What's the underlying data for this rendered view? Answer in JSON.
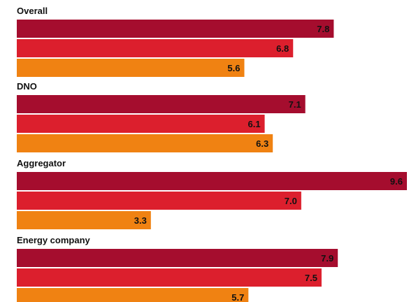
{
  "chart_data": {
    "type": "bar",
    "orientation": "horizontal",
    "title": "",
    "xlabel": "",
    "ylabel": "",
    "xlim": [
      0,
      9.6
    ],
    "grid": false,
    "legend": "none",
    "groups": [
      {
        "label": "Overall",
        "values": [
          7.8,
          6.8,
          5.6
        ],
        "value_labels": [
          "7.8",
          "6.8",
          "5.6"
        ]
      },
      {
        "label": "DNO",
        "values": [
          7.1,
          6.1,
          6.3
        ],
        "value_labels": [
          "7.1",
          "6.1",
          "6.3"
        ]
      },
      {
        "label": "Aggregator",
        "values": [
          9.6,
          7.0,
          3.3
        ],
        "value_labels": [
          "9.6",
          "7.0",
          "3.3"
        ]
      },
      {
        "label": "Energy company",
        "values": [
          7.9,
          7.5,
          5.7
        ],
        "value_labels": [
          "7.9",
          "7.5",
          "5.7"
        ]
      }
    ],
    "bar_colors": [
      "#a50d2e",
      "#dc1f2d",
      "#f08212"
    ]
  }
}
